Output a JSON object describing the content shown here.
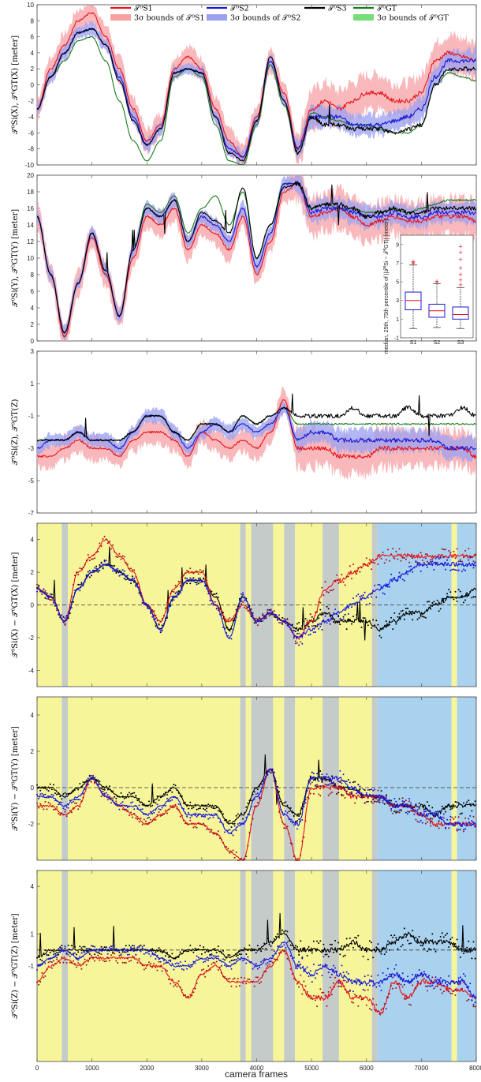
{
  "legend": {
    "items": [
      {
        "label": "𝒯⁰S1",
        "color": "#e8141c",
        "kind": "line"
      },
      {
        "label": "3σ bounds of 𝒯⁰S1",
        "color": "#f7a0a4",
        "kind": "band"
      },
      {
        "label": "𝒯⁰S2",
        "color": "#1818d8",
        "kind": "line"
      },
      {
        "label": "3σ bounds of 𝒯⁰S2",
        "color": "#9aa0f0",
        "kind": "band"
      },
      {
        "label": "𝒯⁰S3",
        "color": "#000000",
        "kind": "line"
      },
      {
        "label": "𝒯⁰GT",
        "color": "#1a7a1a",
        "kind": "line"
      },
      {
        "label": "3σ bounds of 𝒯⁰GT",
        "color": "#77dd77",
        "kind": "band"
      }
    ]
  },
  "xaxis": {
    "label": "camera frames",
    "ticks": [
      "0",
      "1000",
      "2000",
      "3000",
      "4000",
      "5000",
      "6000",
      "7000",
      "8000"
    ]
  },
  "inset": {
    "ylabel": "median, 25th, 75th percentile of ||𝒯⁰Si − 𝒯⁰GT|| [meter]",
    "categories": [
      "S1",
      "S2",
      "S3"
    ],
    "yticks": [
      "-1",
      "1",
      "3",
      "5",
      "7",
      "9"
    ]
  },
  "colors": {
    "s1": "#e8141c",
    "s1band": "#f7a0a4",
    "s2": "#1818d8",
    "s2band": "#9aa0f0",
    "s3": "#000000",
    "gt": "#1a7a1a",
    "yellow": "#f6f59a",
    "blue": "#a9d2ef",
    "grey": "#c5cbc9"
  },
  "chart_data": [
    {
      "type": "line",
      "ylabel": "𝒯⁰Si(X), 𝒯⁰GT(X) [meter]",
      "ylim": [
        -10,
        10
      ],
      "yticks": [
        "10",
        "8",
        "6",
        "4",
        "2",
        "0",
        "-2",
        "-4",
        "-6",
        "-8",
        "-10"
      ],
      "x": [
        0,
        250,
        500,
        750,
        1000,
        1250,
        1500,
        1750,
        2000,
        2250,
        2500,
        2750,
        3000,
        3250,
        3500,
        3750,
        4000,
        4250,
        4500,
        4750,
        5000,
        5250,
        5500,
        5750,
        6000,
        6250,
        6500,
        6750,
        7000,
        7250,
        7500,
        7750,
        8000
      ],
      "series": [
        {
          "name": "S1",
          "values": [
            -3,
            2,
            5,
            8,
            9,
            6,
            2,
            -3,
            -7,
            -5,
            2,
            3.5,
            2,
            -3,
            -7,
            -9,
            -4,
            3,
            -1,
            -8,
            -3,
            -2,
            -3,
            -2,
            -1,
            -1,
            -2,
            -2,
            -1,
            3,
            4,
            3.5,
            3
          ]
        },
        {
          "name": "S2",
          "values": [
            -3,
            1,
            4,
            6.5,
            7,
            5,
            1,
            -4,
            -7.5,
            -5.5,
            1.5,
            2,
            1.5,
            -4,
            -8,
            -9,
            -4.5,
            3,
            -2,
            -8,
            -4,
            -4,
            -4,
            -5,
            -5,
            -5,
            -4.5,
            -4,
            -3,
            1,
            3,
            3,
            3
          ]
        },
        {
          "name": "S3",
          "values": [
            -3,
            1,
            4,
            6.5,
            7,
            5,
            0.5,
            -4.5,
            -7.5,
            -5.5,
            1.5,
            2,
            1.5,
            -4,
            -8.5,
            -9.5,
            -4.5,
            3.5,
            -2,
            -8.5,
            -4,
            -5,
            -5,
            -5.5,
            -5.5,
            -5.5,
            -6,
            -5.5,
            -5,
            0,
            2,
            2,
            2
          ]
        },
        {
          "name": "GT",
          "values": [
            -3,
            1,
            3,
            5.5,
            6,
            3,
            -2,
            -7,
            -9.5,
            -7,
            1,
            2,
            1,
            -5,
            -9.5,
            -10,
            -5,
            2.5,
            -2.5,
            -8.5,
            -3.5,
            -4,
            -4.5,
            -5,
            -5,
            -5.5,
            -6,
            -6,
            -5,
            0,
            1.5,
            1,
            0.5
          ]
        }
      ]
    },
    {
      "type": "line",
      "ylabel": "𝒯⁰Si(Y), 𝒯⁰GT(Y) [meter]",
      "ylim": [
        0,
        20
      ],
      "yticks": [
        "20",
        "18",
        "16",
        "14",
        "12",
        "10",
        "8",
        "6",
        "4",
        "2",
        "0"
      ],
      "x": [
        0,
        250,
        500,
        750,
        1000,
        1250,
        1500,
        1750,
        2000,
        2250,
        2500,
        2750,
        3000,
        3250,
        3500,
        3750,
        4000,
        4250,
        4500,
        4750,
        5000,
        5250,
        5500,
        5750,
        6000,
        6250,
        6500,
        6750,
        7000,
        7250,
        7500,
        7750,
        8000
      ],
      "series": [
        {
          "name": "S1",
          "values": [
            15,
            8,
            0.5,
            7,
            12.5,
            8,
            3,
            10,
            15,
            14,
            16,
            11,
            14,
            13,
            11,
            15,
            8,
            12,
            18,
            19,
            15,
            15.5,
            16,
            15,
            14,
            14.5,
            15,
            14.5,
            14.5,
            15,
            15,
            15,
            14.5
          ]
        },
        {
          "name": "S2",
          "values": [
            15,
            8,
            1,
            7,
            13,
            8.5,
            3,
            11,
            16,
            15,
            17,
            12,
            15,
            14,
            12,
            16,
            9,
            13,
            19,
            19,
            15.5,
            16,
            16,
            15.5,
            15,
            15,
            15.5,
            15,
            15,
            15.5,
            15.5,
            15.5,
            15.5
          ]
        },
        {
          "name": "S3",
          "values": [
            15,
            8,
            1,
            7,
            13,
            8.5,
            3,
            11,
            16,
            15,
            17,
            12,
            15.5,
            14.5,
            13,
            18.5,
            10,
            14,
            18.5,
            19,
            16,
            16.5,
            16.5,
            16,
            15,
            15.5,
            16,
            15.5,
            15.5,
            16,
            16,
            16,
            16
          ]
        },
        {
          "name": "GT",
          "values": [
            15,
            8,
            0.5,
            7,
            13,
            8,
            3,
            11,
            16.5,
            15.5,
            17.5,
            13,
            16,
            17.5,
            14,
            18,
            10,
            14,
            19,
            19,
            16,
            16.5,
            16,
            16,
            15.5,
            15.5,
            16,
            15.5,
            16,
            16.5,
            17,
            17,
            17
          ]
        }
      ]
    },
    {
      "type": "line",
      "ylabel": "𝒯⁰Si(Z), 𝒯⁰GT(Z)",
      "ylim": [
        -7,
        3
      ],
      "yticks": [
        "3",
        "1",
        "-1",
        "-3",
        "-5",
        "-7"
      ],
      "x": [
        0,
        250,
        500,
        750,
        1000,
        1250,
        1500,
        1750,
        2000,
        2250,
        2500,
        2750,
        3000,
        3250,
        3500,
        3750,
        4000,
        4250,
        4500,
        4750,
        5000,
        5250,
        5500,
        5750,
        6000,
        6250,
        6500,
        6750,
        7000,
        7250,
        7500,
        7750,
        8000
      ],
      "series": [
        {
          "name": "S1",
          "values": [
            -3.5,
            -3.5,
            -3,
            -2.5,
            -3,
            -3,
            -3.5,
            -2.5,
            -2,
            -2,
            -2.5,
            -3.5,
            -2,
            -2.5,
            -3,
            -2.5,
            -3,
            -2,
            0,
            -3,
            -3,
            -3,
            -3.5,
            -3.5,
            -3.5,
            -3,
            -3,
            -3,
            -3,
            -3,
            -3,
            -3,
            -3.5
          ]
        },
        {
          "name": "S2",
          "values": [
            -3,
            -2.5,
            -2.5,
            -2,
            -2.5,
            -2.5,
            -3,
            -2,
            -1,
            -1,
            -2,
            -3,
            -2,
            -1.5,
            -2,
            -1.5,
            -2,
            -1.5,
            -0.5,
            -2.5,
            -2,
            -2,
            -2.5,
            -2.5,
            -2.5,
            -2.5,
            -2.5,
            -2.5,
            -2.5,
            -2.5,
            -3,
            -3,
            -3
          ]
        },
        {
          "name": "S3",
          "values": [
            -2.5,
            -2.5,
            -2.5,
            -2,
            -2.5,
            -2.5,
            -2.5,
            -2,
            -1,
            -1,
            -2,
            -2.5,
            -1.5,
            -1.5,
            -2,
            -1,
            -1.5,
            -1,
            -0.5,
            -1,
            -1,
            -1,
            -1,
            -0.5,
            -1,
            -1,
            -1,
            -0.5,
            -1,
            -1,
            -1,
            -0.5,
            -1
          ]
        },
        {
          "name": "GT",
          "values": [
            -2.5,
            -2.5,
            -2.5,
            -2,
            -2.5,
            -2.5,
            -2.5,
            -2,
            -1,
            -1,
            -2,
            -2.5,
            -1.5,
            -1.5,
            -2,
            -1,
            -1.5,
            -1,
            -0.5,
            -1.5,
            -1.5,
            -1.5,
            -1.5,
            -1.5,
            -1.5,
            -1.5,
            -1.5,
            -1.5,
            -1.5,
            -1.5,
            -1.5,
            -1.5,
            -1.5
          ]
        }
      ]
    },
    {
      "type": "line",
      "ylabel": "𝒯⁰Si(X) − 𝒯⁰GT(X) [meter]",
      "ylim": [
        -5,
        5
      ],
      "yticks": [
        "4",
        "2",
        "0",
        "-2",
        "-4"
      ],
      "x": [
        0,
        250,
        500,
        750,
        1000,
        1250,
        1500,
        1750,
        2000,
        2250,
        2500,
        2750,
        3000,
        3250,
        3500,
        3750,
        4000,
        4250,
        4500,
        4750,
        5000,
        5250,
        5500,
        5750,
        6000,
        6250,
        6500,
        6750,
        7000,
        7250,
        7500,
        7750,
        8000
      ],
      "series": [
        {
          "name": "S1",
          "values": [
            1,
            0.5,
            -1,
            2,
            3,
            4,
            3,
            2,
            0,
            -1,
            1,
            2,
            2,
            0,
            -1,
            0,
            -1,
            -0.5,
            -1,
            -2,
            -1,
            1,
            1.5,
            2,
            2.5,
            3,
            3,
            3,
            3,
            3,
            3,
            3,
            3
          ]
        },
        {
          "name": "S2",
          "values": [
            1,
            0.5,
            -1,
            1,
            2,
            2.5,
            2,
            1.5,
            0,
            -1.5,
            0.5,
            1.5,
            1.5,
            0,
            -2,
            0.5,
            -1,
            -0.5,
            -1,
            -2,
            -1.5,
            -1,
            -0.5,
            0,
            0.5,
            1,
            1.5,
            2,
            2.5,
            2.5,
            2.5,
            2.5,
            2.5
          ]
        },
        {
          "name": "S3",
          "values": [
            1,
            0.5,
            -1,
            1,
            2,
            2.5,
            2,
            1.5,
            0,
            -1.5,
            0.5,
            1.5,
            1.5,
            0.5,
            -1.5,
            0.5,
            -1,
            -0.5,
            -1,
            -1.5,
            -1,
            -0.5,
            -1,
            -1,
            -1,
            -1.5,
            -1,
            -0.5,
            -0.5,
            0,
            0.5,
            0.5,
            1
          ]
        }
      ]
    },
    {
      "type": "line",
      "ylabel": "𝒯⁰Si(Y) − 𝒯⁰GT(Y) [meter]",
      "ylim": [
        -4,
        5
      ],
      "yticks": [
        "4",
        "2",
        "0",
        "-2"
      ],
      "x": [
        0,
        250,
        500,
        750,
        1000,
        1250,
        1500,
        1750,
        2000,
        2250,
        2500,
        2750,
        3000,
        3250,
        3500,
        3750,
        4000,
        4250,
        4500,
        4750,
        5000,
        5250,
        5500,
        5750,
        6000,
        6250,
        6500,
        6750,
        7000,
        7250,
        7500,
        7750,
        8000
      ],
      "series": [
        {
          "name": "S1",
          "values": [
            -1,
            -1,
            -1.5,
            -1,
            0.5,
            -0.5,
            -1,
            -1.5,
            -2,
            -1.5,
            -1,
            -2,
            -2,
            -2.5,
            -3.5,
            -4,
            -1,
            1,
            -2,
            -4,
            0,
            0,
            0,
            -0.5,
            -0.5,
            -0.5,
            -1,
            -1,
            -1.5,
            -2,
            -2,
            -2,
            -2
          ]
        },
        {
          "name": "S2",
          "values": [
            -0.5,
            -0.5,
            -1,
            -0.5,
            0.5,
            -0.5,
            -1,
            -1,
            -1.5,
            -1,
            -0.5,
            -1.5,
            -1.5,
            -1.5,
            -2.5,
            -2,
            -0.5,
            1,
            -1.5,
            -2,
            0.5,
            0.5,
            0.5,
            0,
            -0.5,
            -0.5,
            -1,
            -1,
            -1.5,
            -1.5,
            -2,
            -2,
            -2
          ]
        },
        {
          "name": "S3",
          "values": [
            0,
            0,
            -0.5,
            0,
            0.5,
            0,
            -0.5,
            -0.5,
            -1,
            -0.5,
            0,
            -1,
            -1,
            -1,
            -2,
            -1.5,
            0,
            1,
            -1,
            -1.5,
            0.5,
            0.5,
            0,
            0,
            -0.5,
            -0.5,
            -1,
            -1,
            -1,
            -1.5,
            -1,
            -1,
            -1
          ]
        }
      ]
    },
    {
      "type": "line",
      "ylabel": "𝒯⁰Si(Z) − 𝒯⁰GT(Z) [meter]",
      "ylim": [
        -7,
        5
      ],
      "yticks": [
        "4",
        "1",
        "-1"
      ],
      "x": [
        0,
        250,
        500,
        750,
        1000,
        1250,
        1500,
        1750,
        2000,
        2250,
        2500,
        2750,
        3000,
        3250,
        3500,
        3750,
        4000,
        4250,
        4500,
        4750,
        5000,
        5250,
        5500,
        5750,
        6000,
        6250,
        6500,
        6750,
        7000,
        7250,
        7500,
        7750,
        8000
      ],
      "series": [
        {
          "name": "S1",
          "values": [
            -2,
            -1,
            -0.5,
            -1,
            -0.5,
            -0.5,
            -0.5,
            -0.5,
            -1,
            -1,
            -2,
            -3,
            -1.5,
            -1,
            -2,
            -2,
            -2,
            -1,
            0,
            -2,
            -3,
            -3,
            -2,
            -3,
            -3,
            -4,
            -2,
            -3,
            -2,
            -2,
            -2.5,
            -2.5,
            -3
          ]
        },
        {
          "name": "S2",
          "values": [
            -1,
            -0.5,
            0,
            -0.5,
            0,
            0,
            0,
            0,
            0,
            -0.5,
            -1,
            -1,
            -0.5,
            -0.5,
            -1,
            -0.5,
            -1,
            -0.5,
            0.5,
            -1,
            -1.5,
            -1,
            -1.5,
            -2,
            -2,
            -2,
            -1.5,
            -2,
            -1.5,
            -2,
            -2,
            -2,
            -3
          ]
        },
        {
          "name": "S3",
          "values": [
            -0.5,
            0,
            0,
            0,
            0,
            0,
            0,
            0,
            0,
            0,
            -0.5,
            0,
            0,
            0,
            -0.5,
            0,
            0,
            0.5,
            1,
            0,
            0,
            0,
            0,
            0.5,
            0,
            0,
            0.5,
            1,
            0.5,
            0.5,
            0.5,
            0,
            0
          ]
        }
      ]
    }
  ]
}
